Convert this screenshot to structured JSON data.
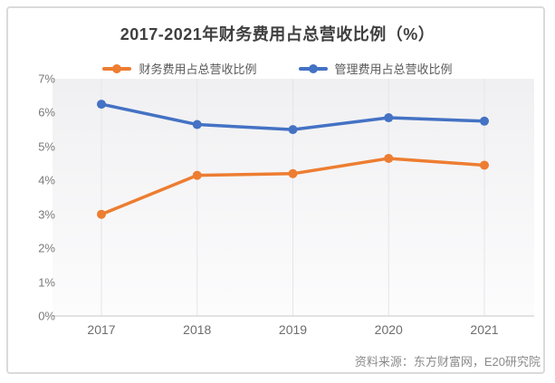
{
  "card": {
    "source_label": "资料来源：东方财富网，E20研究院"
  },
  "chart_data": {
    "type": "line",
    "title": "2017-2021年财务费用占总营收比例（%）",
    "categories": [
      "2017",
      "2018",
      "2019",
      "2020",
      "2021"
    ],
    "series": [
      {
        "name": "财务费用占总营收比例",
        "color": "#ED7D31",
        "values": [
          3.0,
          4.15,
          4.2,
          4.65,
          4.45
        ]
      },
      {
        "name": "管理费用占总营收比例",
        "color": "#4472C4",
        "values": [
          6.25,
          5.65,
          5.5,
          5.85,
          5.75
        ]
      }
    ],
    "yticks": [
      "0%",
      "1%",
      "2%",
      "3%",
      "4%",
      "5%",
      "6%",
      "7%"
    ],
    "ylim": [
      0,
      7
    ],
    "grid": "vertical-only",
    "legend_position": "top-center",
    "colors": {
      "gridline": "#e5e5e7",
      "axis_line": "#d9d9d9",
      "plot_bg_top": "#f0f0f2",
      "plot_bg_bottom": "#fcfcfd"
    }
  }
}
